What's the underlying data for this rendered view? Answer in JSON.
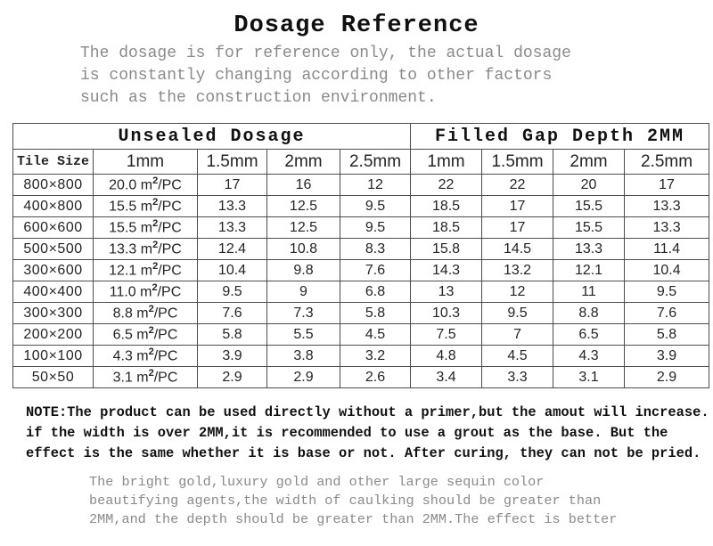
{
  "page": {
    "title": "Dosage Reference",
    "subtitle_lines": [
      "The dosage is for reference only, the actual dosage",
      "is constantly changing according to other factors",
      "such as the construction environment."
    ]
  },
  "colors": {
    "text": "#1f1f1f",
    "muted_text": "#8a8a8a",
    "table_border": "#4d4d4d"
  },
  "table": {
    "sections": [
      {
        "label": "Unsealed Dosage",
        "colspan": 5
      },
      {
        "label": "Filled Gap Depth 2MM",
        "colspan": 4
      }
    ],
    "column_headers": [
      "Tile Size",
      "1mm",
      "1.5mm",
      "2mm",
      "2.5mm",
      "1mm",
      "1.5mm",
      "2mm",
      "2.5mm"
    ],
    "rows": [
      {
        "tile_size": "800×800",
        "cells": [
          "20.0 m²/PC",
          "17",
          "16",
          "12",
          "22",
          "22",
          "20",
          "17"
        ]
      },
      {
        "tile_size": "400×800",
        "cells": [
          "15.5 m²/PC",
          "13.3",
          "12.5",
          "9.5",
          "18.5",
          "17",
          "15.5",
          "13.3"
        ]
      },
      {
        "tile_size": "600×600",
        "cells": [
          "15.5 m²/PC",
          "13.3",
          "12.5",
          "9.5",
          "18.5",
          "17",
          "15.5",
          "13.3"
        ]
      },
      {
        "tile_size": "500×500",
        "cells": [
          "13.3 m²/PC",
          "12.4",
          "10.8",
          "8.3",
          "15.8",
          "14.5",
          "13.3",
          "11.4"
        ]
      },
      {
        "tile_size": "300×600",
        "cells": [
          "12.1 m²/PC",
          "10.4",
          "9.8",
          "7.6",
          "14.3",
          "13.2",
          "12.1",
          "10.4"
        ]
      },
      {
        "tile_size": "400×400",
        "cells": [
          "11.0 m²/PC",
          "9.5",
          "9",
          "6.8",
          "13",
          "12",
          "11",
          "9.5"
        ]
      },
      {
        "tile_size": "300×300",
        "cells": [
          "8.8 m²/PC",
          "7.6",
          "7.3",
          "5.8",
          "10.3",
          "9.5",
          "8.8",
          "7.6"
        ]
      },
      {
        "tile_size": "200×200",
        "cells": [
          "6.5 m²/PC",
          "5.8",
          "5.5",
          "4.5",
          "7.5",
          "7",
          "6.5",
          "5.8"
        ]
      },
      {
        "tile_size": "100×100",
        "cells": [
          "4.3 m²/PC",
          "3.9",
          "3.8",
          "3.2",
          "4.8",
          "4.5",
          "4.3",
          "3.9"
        ]
      },
      {
        "tile_size": "50×50",
        "cells": [
          "3.1 m²/PC",
          "2.9",
          "2.9",
          "2.6",
          "3.4",
          "3.3",
          "3.1",
          "2.9"
        ]
      }
    ]
  },
  "note": {
    "lines": [
      "NOTE:The product can be used directly without a primer,but the amout will increase.",
      "if the width is over 2MM,it is recommended to use a grout as the base. But the",
      "effect is the same whether it is base or not. After curing, they can not be pried."
    ]
  },
  "footer_note": {
    "lines": [
      "The bright gold,luxury gold and other large sequin color",
      "beautifying agents,the width of caulking should be greater than",
      "2MM,and the depth should be greater than 2MM.The effect is better"
    ]
  }
}
